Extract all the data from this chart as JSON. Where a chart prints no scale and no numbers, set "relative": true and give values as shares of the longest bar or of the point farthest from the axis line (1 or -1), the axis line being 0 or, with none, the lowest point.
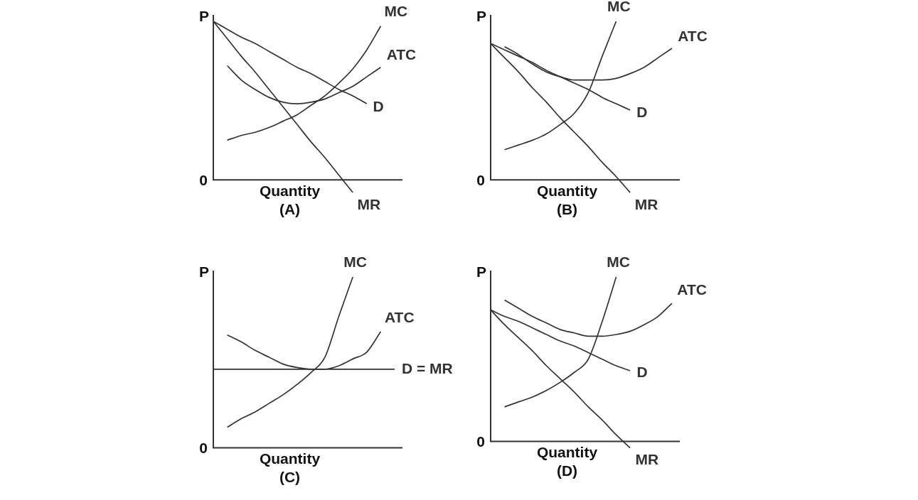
{
  "chart_data": [
    {
      "type": "line",
      "relative": true,
      "title": "(A)",
      "xlabel": "Quantity",
      "ylabel": "P",
      "annotations": [
        "0"
      ],
      "marker": "none",
      "categories": [
        null,
        null,
        null,
        null,
        null,
        null,
        null,
        null,
        null,
        null,
        null,
        null,
        null,
        null
      ],
      "series": [
        {
          "name": "MC",
          "color": "#333333",
          "values": [
            null,
            0.25,
            0.28,
            0.3,
            0.33,
            0.37,
            0.41,
            0.47,
            0.53,
            0.61,
            0.7,
            0.82,
            0.97,
            null
          ]
        },
        {
          "name": "ATC",
          "color": "#333333",
          "values": [
            null,
            0.72,
            0.63,
            0.57,
            0.52,
            0.49,
            0.48,
            0.49,
            0.51,
            0.55,
            0.59,
            0.65,
            0.71,
            null
          ]
        },
        {
          "name": "D",
          "color": "#333333",
          "values": [
            1,
            0.95,
            0.9,
            0.86,
            0.81,
            0.76,
            0.71,
            0.67,
            0.62,
            0.57,
            0.53,
            0.48,
            null,
            null
          ]
        },
        {
          "name": "MR",
          "color": "#333333",
          "values": [
            1,
            0.89,
            0.78,
            0.68,
            0.57,
            0.46,
            0.35,
            0.24,
            0.14,
            0.03,
            -0.08,
            null,
            null,
            null
          ]
        }
      ]
    },
    {
      "type": "line",
      "relative": true,
      "title": "(B)",
      "xlabel": "Quantity",
      "ylabel": "P",
      "annotations": [
        "0"
      ],
      "marker": "none",
      "categories": [
        null,
        null,
        null,
        null,
        null,
        null,
        null,
        null,
        null,
        null,
        null,
        null,
        null,
        null
      ],
      "series": [
        {
          "name": "MC",
          "color": "#333333",
          "values": [
            null,
            0.19,
            0.22,
            0.25,
            0.29,
            0.35,
            0.42,
            0.55,
            0.78,
            1,
            null,
            null,
            null,
            null
          ]
        },
        {
          "name": "ATC",
          "color": "#333333",
          "values": [
            null,
            0.84,
            0.79,
            0.73,
            0.68,
            0.65,
            0.63,
            0.63,
            0.63,
            0.64,
            0.67,
            0.71,
            0.77,
            0.83
          ]
        },
        {
          "name": "D",
          "color": "#333333",
          "values": [
            0.86,
            0.82,
            0.78,
            0.74,
            0.69,
            0.65,
            0.61,
            0.57,
            0.52,
            0.48,
            0.44,
            null,
            null,
            null
          ]
        },
        {
          "name": "MR",
          "color": "#333333",
          "values": [
            0.86,
            0.77,
            0.68,
            0.58,
            0.49,
            0.39,
            0.3,
            0.21,
            0.11,
            0.02,
            -0.08,
            null,
            null,
            null
          ]
        }
      ]
    },
    {
      "type": "line",
      "relative": true,
      "title": "(C)",
      "xlabel": "Quantity",
      "ylabel": "P",
      "annotations": [
        "0"
      ],
      "marker": "none",
      "categories": [
        null,
        null,
        null,
        null,
        null,
        null,
        null,
        null,
        null,
        null,
        null,
        null,
        null,
        null
      ],
      "series": [
        {
          "name": "MC",
          "color": "#333333",
          "values": [
            null,
            0.12,
            0.17,
            0.21,
            0.26,
            0.31,
            0.37,
            0.44,
            0.53,
            0.77,
            1,
            null,
            null,
            null
          ]
        },
        {
          "name": "ATC",
          "color": "#333333",
          "values": [
            null,
            0.66,
            0.62,
            0.57,
            0.53,
            0.49,
            0.47,
            0.46,
            0.46,
            0.48,
            0.52,
            0.56,
            0.68,
            null
          ]
        },
        {
          "name": "D = MR",
          "color": "#333333",
          "values": [
            0.46,
            0.46,
            0.46,
            0.46,
            0.46,
            0.46,
            0.46,
            0.46,
            0.46,
            0.46,
            0.46,
            0.46,
            0.46,
            0.46
          ]
        }
      ]
    },
    {
      "type": "line",
      "relative": true,
      "title": "(D)",
      "xlabel": "Quantity",
      "ylabel": "P",
      "annotations": [
        "0"
      ],
      "marker": "none",
      "categories": [
        null,
        null,
        null,
        null,
        null,
        null,
        null,
        null,
        null,
        null,
        null,
        null,
        null,
        null
      ],
      "series": [
        {
          "name": "MC",
          "color": "#333333",
          "values": [
            null,
            0.21,
            0.24,
            0.27,
            0.31,
            0.36,
            0.42,
            0.5,
            0.73,
            1,
            null,
            null,
            null,
            null
          ]
        },
        {
          "name": "ATC",
          "color": "#333333",
          "values": [
            null,
            0.86,
            0.81,
            0.76,
            0.72,
            0.68,
            0.66,
            0.64,
            0.64,
            0.65,
            0.67,
            0.71,
            0.76,
            0.84
          ]
        },
        {
          "name": "D",
          "color": "#333333",
          "values": [
            0.8,
            0.76,
            0.73,
            0.69,
            0.65,
            0.61,
            0.58,
            0.54,
            0.5,
            0.46,
            0.43,
            null,
            null,
            null
          ]
        },
        {
          "name": "MR",
          "color": "#333333",
          "values": [
            0.8,
            0.71,
            0.63,
            0.55,
            0.46,
            0.38,
            0.3,
            0.21,
            0.13,
            0.04,
            -0.04,
            null,
            null,
            null
          ]
        }
      ]
    }
  ]
}
